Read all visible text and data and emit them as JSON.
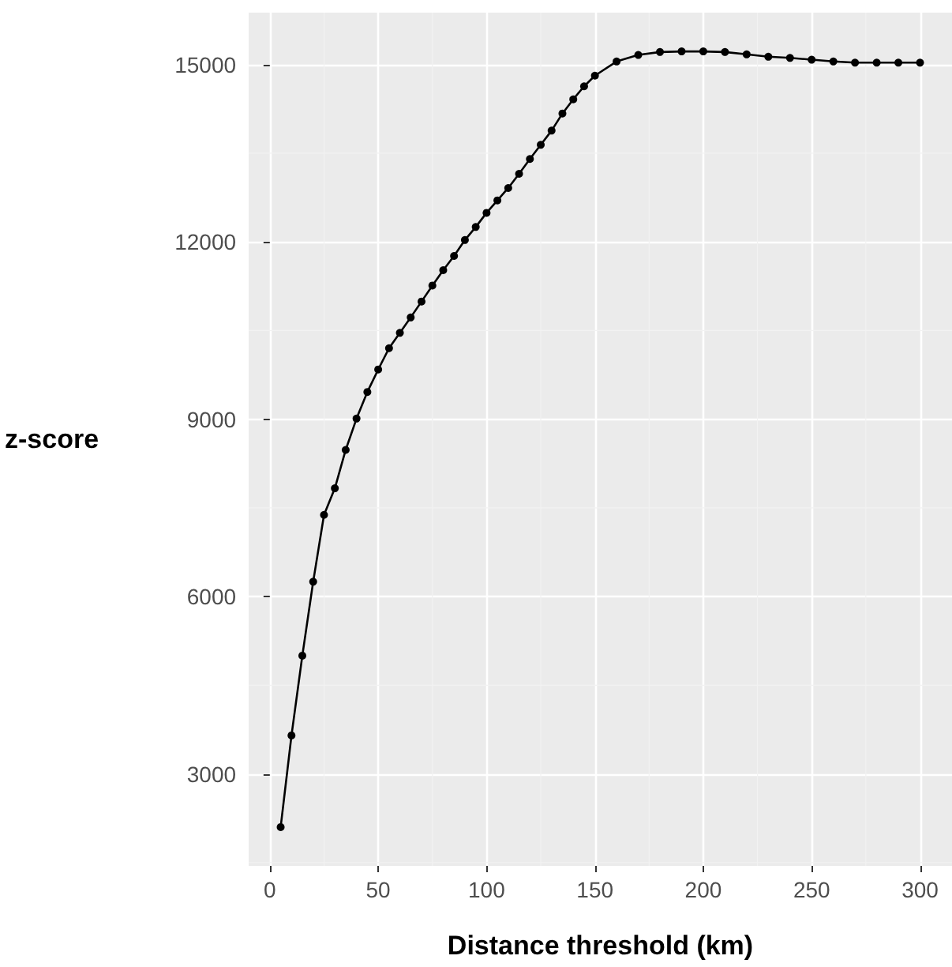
{
  "chart_data": {
    "type": "line",
    "xlabel": "Distance threshold (km)",
    "ylabel": "z-score",
    "x": [
      5,
      10,
      15,
      20,
      25,
      30,
      35,
      40,
      45,
      50,
      55,
      60,
      65,
      70,
      75,
      80,
      85,
      90,
      95,
      100,
      105,
      110,
      115,
      120,
      125,
      130,
      135,
      140,
      145,
      150,
      160,
      170,
      180,
      190,
      200,
      210,
      220,
      230,
      240,
      250,
      260,
      270,
      280,
      290,
      300
    ],
    "series": [
      {
        "color": "#000000",
        "values": [
          2100,
          3650,
          5000,
          6250,
          7380,
          7830,
          8480,
          9010,
          9460,
          9840,
          10200,
          10460,
          10720,
          10990,
          11260,
          11520,
          11760,
          12030,
          12250,
          12490,
          12700,
          12910,
          13150,
          13400,
          13640,
          13880,
          14170,
          14410,
          14630,
          14810,
          15050,
          15160,
          15210,
          15220,
          15220,
          15210,
          15170,
          15130,
          15110,
          15080,
          15050,
          15030,
          15030,
          15030,
          15030
        ]
      }
    ],
    "xlim": [
      -9.75,
      314.75
    ],
    "xticks": [
      0,
      50,
      100,
      150,
      200,
      250,
      300
    ],
    "ylim": [
      1444,
      15876
    ],
    "yticks": [
      3000,
      6000,
      9000,
      12000,
      15000
    ],
    "grid": true,
    "marker": "circle",
    "line_style": "solid"
  }
}
